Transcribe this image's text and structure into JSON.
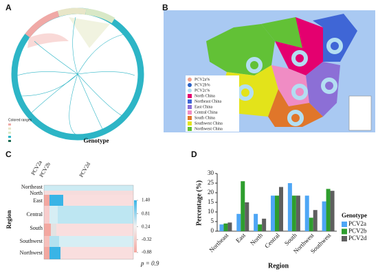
{
  "panel_labels": [
    "A",
    "B",
    "C",
    "D"
  ],
  "tree": {
    "legend_title": "Colored ranges"
  },
  "map_legend": [
    {
      "label": "PCV2a%",
      "color": "#f2a08c"
    },
    {
      "label": "PCV2b%",
      "color": "#2b62c4"
    },
    {
      "label": "PCV2c%",
      "color": "#b3def2"
    },
    {
      "label": "North China",
      "color": "#e4006f"
    },
    {
      "label": "Northeast China",
      "color": "#3f66d6"
    },
    {
      "label": "East China",
      "color": "#8c6fd6"
    },
    {
      "label": "Central China",
      "color": "#f08cc4"
    },
    {
      "label": "South China",
      "color": "#e0762a"
    },
    {
      "label": "Southwest China",
      "color": "#e3e31a"
    },
    {
      "label": "Northwest China",
      "color": "#62c136"
    }
  ],
  "heatmap": {
    "title": "Genotype",
    "columns": [
      "PCV2a",
      "PCV2b",
      "PCV2d"
    ],
    "rows": [
      "Northeast",
      "North",
      "East",
      "Central",
      "South",
      "Southwest",
      "Northwest"
    ],
    "y_label": "Region",
    "colorbar_ticks": [
      {
        "value": 1.4,
        "label": "1.40"
      },
      {
        "value": 0.81,
        "label": "0.81"
      },
      {
        "value": 0.24,
        "label": "0.24"
      },
      {
        "value": -0.32,
        "label": "-0.32"
      },
      {
        "value": -0.88,
        "label": "-0.88"
      }
    ],
    "colorbar_lim": [
      -0.88,
      1.4
    ],
    "note": "p = 0.9"
  },
  "chart_data": {
    "type": "bar",
    "x_label": "Region",
    "y_label": "Percentage (%)",
    "categories": [
      "Northeast",
      "East",
      "North",
      "Central",
      "South",
      "Northwest",
      "Southwest"
    ],
    "legend_title": "Genotype",
    "series": [
      {
        "name": "PCV2a",
        "color": "#4ea6f5",
        "values": [
          3.5,
          9,
          9,
          18.5,
          25,
          18.5,
          15.5
        ]
      },
      {
        "name": "PCV2b",
        "color": "#2e9e2e",
        "values": [
          4,
          26,
          3.5,
          18.5,
          18.5,
          7,
          22
        ]
      },
      {
        "name": "PCV2d",
        "color": "#5f5f5f",
        "values": [
          4.5,
          15,
          6.5,
          23,
          18.5,
          11,
          21
        ]
      }
    ],
    "ylim": [
      0,
      30
    ],
    "yticks": [
      0,
      5,
      10,
      15,
      20,
      25,
      30
    ],
    "legend": "right"
  }
}
